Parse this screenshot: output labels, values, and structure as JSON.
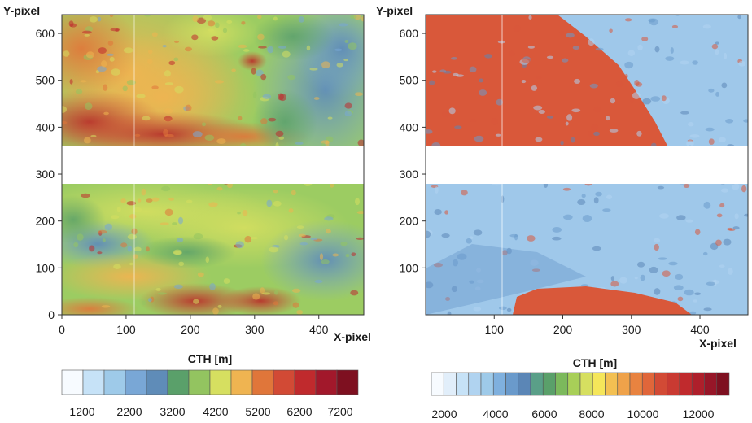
{
  "chart_data": [
    {
      "type": "heatmap",
      "xlabel": "X-pixel",
      "ylabel": "Y-pixel",
      "xlim": [
        0,
        470
      ],
      "ylim": [
        0,
        640
      ],
      "x_ticks": [
        "0",
        "100",
        "200",
        "300",
        "400"
      ],
      "y_ticks": [
        "0",
        "100",
        "200",
        "300",
        "400",
        "500",
        "600"
      ],
      "no_data_band_y": [
        275,
        360
      ],
      "colorbar": {
        "title": "CTH [m]",
        "tick_labels": [
          "1200",
          "2200",
          "3200",
          "4200",
          "5200",
          "6200",
          "7200"
        ],
        "colors": [
          "#f7fbff",
          "#c6e2f7",
          "#9ecae9",
          "#79a7d6",
          "#5f8cb8",
          "#5aa06a",
          "#93c460",
          "#d6df60",
          "#efb451",
          "#e0763a",
          "#d24a35",
          "#c02a2d",
          "#a2182b",
          "#7e1020"
        ]
      }
    },
    {
      "type": "heatmap",
      "xlabel": "X-pixel",
      "ylabel": "Y-pixel",
      "xlim": [
        0,
        470
      ],
      "ylim": [
        0,
        640
      ],
      "x_ticks": [
        "100",
        "200",
        "300",
        "400"
      ],
      "y_ticks": [
        "100",
        "200",
        "300",
        "400",
        "500",
        "600"
      ],
      "no_data_band_y": [
        275,
        360
      ],
      "colorbar": {
        "title": "CTH [m]",
        "tick_labels": [
          "2000",
          "4000",
          "6000",
          "8000",
          "10000",
          "12000"
        ],
        "colors": [
          "#f7fbff",
          "#e1eefa",
          "#c6e2f7",
          "#b0d3f0",
          "#9ecae9",
          "#7fb0de",
          "#6a9acb",
          "#5b86b6",
          "#5a9f88",
          "#5aa06a",
          "#7cb95c",
          "#a8cf58",
          "#d6df60",
          "#f5e65a",
          "#f3c052",
          "#efa24a",
          "#e88340",
          "#e0663a",
          "#d24a35",
          "#c93a32",
          "#c02a2d",
          "#ae1f2b",
          "#971628",
          "#7e1020"
        ]
      }
    }
  ]
}
